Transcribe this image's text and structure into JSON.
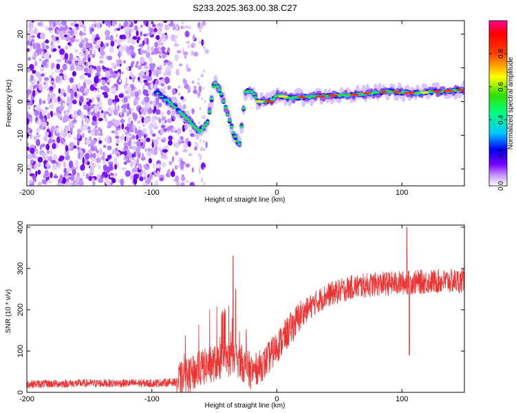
{
  "title": "S233.2025.363.00.38.C27",
  "chart_data": [
    {
      "type": "heatmap",
      "xlabel": "Height of straight line (km)",
      "ylabel": "Frequency (Hz)",
      "xlim": [
        -200,
        150
      ],
      "ylim": [
        -25,
        24
      ],
      "xticks": [
        -200,
        -100,
        0,
        100
      ],
      "xtick_labels": [
        "-200",
        "-100",
        "0",
        "100"
      ],
      "yticks": [
        -20,
        -10,
        0,
        10,
        20
      ],
      "ytick_labels": [
        "-20",
        "-10",
        "0",
        "10",
        "20"
      ],
      "colorbar": {
        "label": "Normalized spectral amplitude",
        "range": [
          0,
          1
        ],
        "ticks": [
          0.0,
          0.2,
          0.4,
          0.6,
          0.8
        ],
        "tick_labels": [
          "0.0",
          "0.2",
          "0.4",
          "0.6",
          "0.8"
        ]
      },
      "noise_region_x": [
        -200,
        -65
      ],
      "signal_track": {
        "x": [
          -97,
          -90,
          -80,
          -72,
          -62,
          -55,
          -50,
          -45,
          -40,
          -35,
          -30,
          -25,
          -20,
          -15,
          -10,
          -5,
          0,
          10,
          30,
          60,
          90,
          110,
          130,
          150
        ],
        "y": [
          3,
          1,
          -2,
          -5,
          -9,
          -6,
          6,
          3,
          -3,
          -9,
          -13,
          3,
          3,
          0,
          0,
          0,
          2,
          1,
          1.5,
          2,
          3,
          2.5,
          3,
          3.5
        ]
      }
    },
    {
      "type": "line",
      "xlabel": "Height of straight line (km)",
      "ylabel": "SNR (10 * v/v)",
      "xlim": [
        -200,
        150
      ],
      "ylim": [
        0,
        405
      ],
      "xticks": [
        -200,
        -100,
        0,
        100
      ],
      "xtick_labels": [
        "-200",
        "-100",
        "0",
        "100"
      ],
      "yticks": [
        0,
        100,
        200,
        300,
        400
      ],
      "ytick_labels": [
        "0",
        "100",
        "200",
        "300",
        "400"
      ],
      "color": "#ee3333",
      "trend": {
        "x": [
          -200,
          -150,
          -100,
          -80,
          -70,
          -60,
          -50,
          -40,
          -30,
          -25,
          -20,
          -10,
          0,
          10,
          20,
          30,
          40,
          60,
          80,
          100,
          120,
          150
        ],
        "y": [
          20,
          22,
          22,
          25,
          40,
          60,
          70,
          80,
          80,
          60,
          50,
          70,
          110,
          150,
          190,
          215,
          235,
          255,
          262,
          265,
          268,
          270
        ]
      },
      "spikes": [
        {
          "x": -35,
          "y": 330
        },
        {
          "x": -33,
          "y": 250
        },
        {
          "x": 104,
          "y": 400
        },
        {
          "x": 106,
          "y": 90
        }
      ]
    }
  ]
}
